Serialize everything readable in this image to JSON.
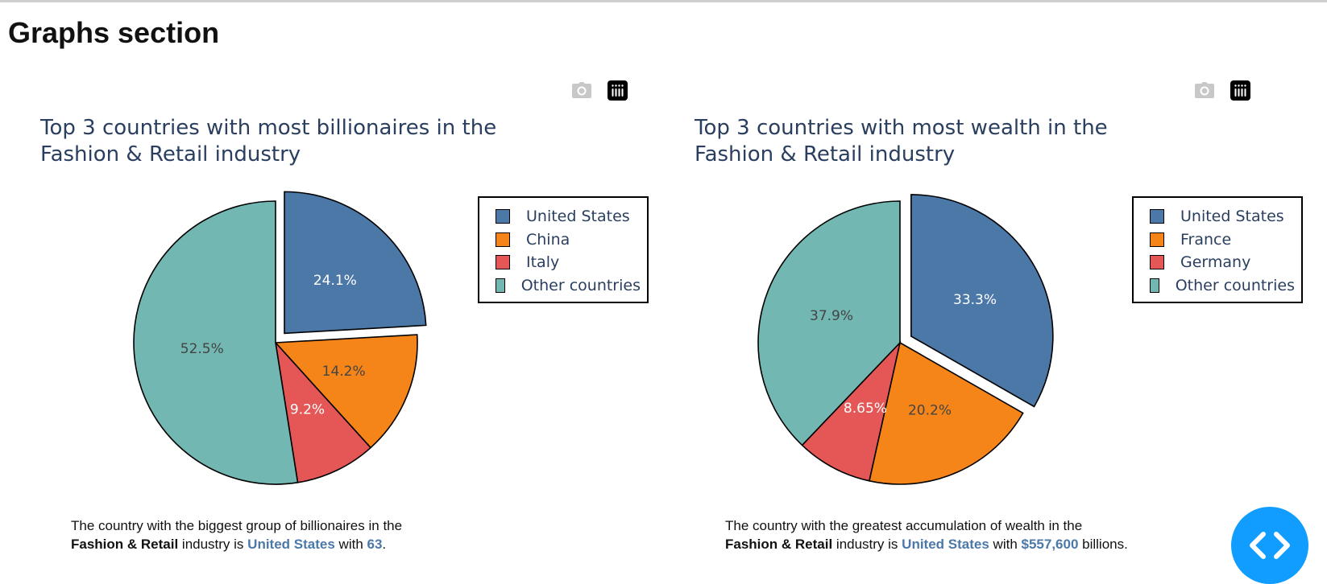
{
  "page": {
    "title": "Graphs section"
  },
  "charts": [
    {
      "caption": {
        "line1": "The country with the biggest group of billionaires in the",
        "bold_industry": "Fashion & Retail",
        "mid": " industry is ",
        "country": "United States",
        "with_text": " with ",
        "value": "63",
        "end": "."
      }
    },
    {
      "caption": {
        "line1": "The country with the greatest accumulation of wealth in the",
        "bold_industry": "Fashion & Retail",
        "mid": " industry is ",
        "country": "United States",
        "with_text": " with ",
        "value": "$557,600",
        "end": " billions."
      }
    }
  ],
  "chart_data": [
    {
      "type": "pie",
      "title": "Top 3 countries with most billionaires in the Fashion & Retail industry",
      "title_lines": [
        "Top 3 countries with most billionaires in the",
        "Fashion & Retail industry"
      ],
      "labels": [
        "United States",
        "China",
        "Italy",
        "Other countries"
      ],
      "values": [
        24.1,
        14.2,
        9.2,
        52.5
      ],
      "text": [
        "24.1%",
        "14.2%",
        "9.2%",
        "52.5%"
      ],
      "colors": [
        "#4c78a8",
        "#f58518",
        "#e45756",
        "#72b7b2"
      ],
      "pulled_slice": "United States",
      "legend_position": "top-right"
    },
    {
      "type": "pie",
      "title": "Top 3 countries with most wealth in the Fashion & Retail industry",
      "title_lines": [
        "Top 3 countries with most wealth in the",
        "Fashion & Retail industry"
      ],
      "labels": [
        "United States",
        "France",
        "Germany",
        "Other countries"
      ],
      "values": [
        33.3,
        20.2,
        8.65,
        37.9
      ],
      "text": [
        "33.3%",
        "20.2%",
        "8.65%",
        "37.9%"
      ],
      "colors": [
        "#4c78a8",
        "#f58518",
        "#e45756",
        "#72b7b2"
      ],
      "pulled_slice": "United States",
      "legend_position": "top-right"
    }
  ],
  "toolbar": {
    "icons": [
      "camera-icon",
      "plotly-logo-icon"
    ],
    "fab_icon": "code-brackets-icon"
  }
}
